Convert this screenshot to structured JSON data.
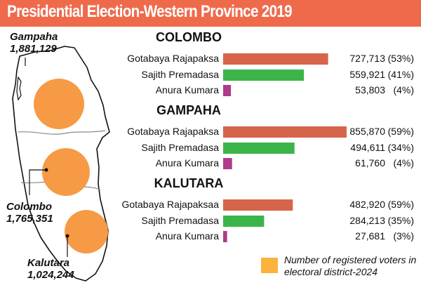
{
  "title": "Presidential Election-Western Province 2019",
  "colors": {
    "title_bg": "#ef6a4b",
    "gotabaya": "#d6644a",
    "sajith": "#3bb54a",
    "anura": "#b03a8c",
    "voters_circle": "#f79a45",
    "legend_swatch": "#fbb33b"
  },
  "map": {
    "districts": [
      {
        "name": "Gampaha",
        "voters": "1,881,129",
        "registered_voters": 1881129
      },
      {
        "name": "Colombo",
        "voters": "1,765,351",
        "registered_voters": 1765351
      },
      {
        "name": "Kalutara",
        "voters": "1,024,244",
        "registered_voters": 1024244
      }
    ]
  },
  "legend": {
    "text": "Number of registered voters in electoral district-2024"
  },
  "chart_data": {
    "type": "bar",
    "orientation": "horizontal",
    "groups": [
      {
        "district": "COLOMBO",
        "rows": [
          {
            "candidate": "Gotabaya Rajapaksa",
            "votes": 727713,
            "votes_label": "727,713",
            "pct_label": "(53%)",
            "color_key": "gotabaya"
          },
          {
            "candidate": "Sajith Premadasa",
            "votes": 559921,
            "votes_label": "559,921",
            "pct_label": "(41%)",
            "color_key": "sajith"
          },
          {
            "candidate": "Anura Kumara",
            "votes": 53803,
            "votes_label": "53,803",
            "pct_label": "(4%)",
            "color_key": "anura"
          }
        ]
      },
      {
        "district": "GAMPAHA",
        "rows": [
          {
            "candidate": "Gotabaya Rajapaksa",
            "votes": 855870,
            "votes_label": "855,870",
            "pct_label": "(59%)",
            "color_key": "gotabaya"
          },
          {
            "candidate": "Sajith Premadasa",
            "votes": 494611,
            "votes_label": "494,611",
            "pct_label": "(34%)",
            "color_key": "sajith"
          },
          {
            "candidate": "Anura Kumara",
            "votes": 61760,
            "votes_label": "61,760",
            "pct_label": "(4%)",
            "color_key": "anura"
          }
        ]
      },
      {
        "district": "KALUTARA",
        "rows": [
          {
            "candidate": "Gotabaya Rajapaksaa",
            "votes": 482920,
            "votes_label": "482,920",
            "pct_label": "(59%)",
            "color_key": "gotabaya"
          },
          {
            "candidate": "Sajith Premadasa",
            "votes": 284213,
            "votes_label": "284,213",
            "pct_label": "(35%)",
            "color_key": "sajith"
          },
          {
            "candidate": "Anura Kumara",
            "votes": 27681,
            "votes_label": "27,681",
            "pct_label": "(3%)",
            "color_key": "anura"
          }
        ]
      }
    ],
    "xlim": [
      0,
      900000
    ]
  }
}
